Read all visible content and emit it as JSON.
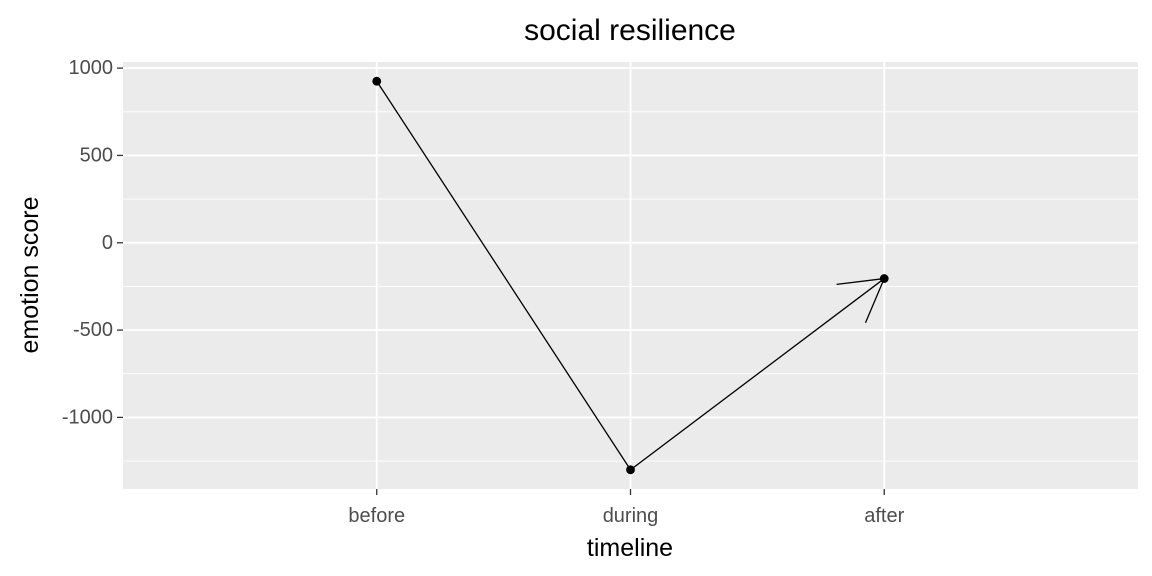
{
  "chart_data": {
    "type": "line",
    "title": "social resilience",
    "xlabel": "timeline",
    "ylabel": "emotion score",
    "categories": [
      "before",
      "during",
      "after"
    ],
    "series": [
      {
        "values": [
          925,
          -1300,
          -205
        ]
      }
    ],
    "ylim": [
      -1410,
      1035
    ],
    "yticks": [
      {
        "value": 1000,
        "label": "1000"
      },
      {
        "value": 500,
        "label": "500"
      },
      {
        "value": 0,
        "label": "0"
      },
      {
        "value": -500,
        "label": "-500"
      },
      {
        "value": -1000,
        "label": "-1000"
      }
    ],
    "y_minor_breaks": [
      750,
      250,
      -250,
      -750,
      -1250
    ],
    "grid": true,
    "end_arrow": true,
    "colors": {
      "panel_background": "#ebebeb",
      "grid_line": "#ffffff",
      "series_line": "#000000",
      "point": "#000000",
      "tick_mark": "#333333"
    }
  }
}
